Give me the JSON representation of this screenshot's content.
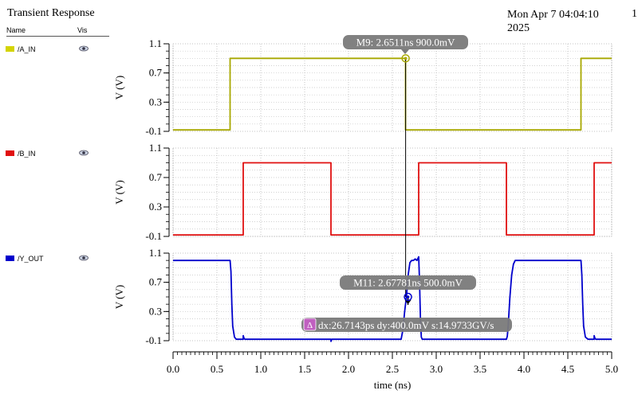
{
  "header": {
    "title": "Transient Response",
    "date_line1": "Mon Apr 7 04:04:10",
    "date_line2": "2025",
    "page_number": "1"
  },
  "legend": {
    "col_name": "Name",
    "col_vis": "Vis"
  },
  "signals": [
    {
      "name": "/A_IN",
      "color": "#a8a800",
      "swatch": "#d4d400"
    },
    {
      "name": "/B_IN",
      "color": "#e01010",
      "swatch": "#e01010"
    },
    {
      "name": "/Y_OUT",
      "color": "#0000cc",
      "swatch": "#0000cc"
    }
  ],
  "chart_data": {
    "type": "line",
    "xlabel": "time (ns)",
    "xlim": [
      0,
      5.0
    ],
    "x_ticks": [
      "0.0",
      "0.5",
      "1.0",
      "1.5",
      "2.0",
      "2.5",
      "3.0",
      "3.5",
      "4.0",
      "4.5",
      "5.0"
    ],
    "x_tick_values": [
      0,
      0.5,
      1,
      1.5,
      2,
      2.5,
      3,
      3.5,
      4,
      4.5,
      5
    ],
    "panels": [
      {
        "ylabel": "V (V)",
        "ylim": [
          -0.1,
          1.1
        ],
        "y_ticks": [
          "-0.1",
          "0.3",
          "0.7",
          "1.1"
        ],
        "y_tick_values": [
          -0.1,
          0.3,
          0.7,
          1.1
        ],
        "series": {
          "name": "/A_IN",
          "x": [
            0,
            0.65,
            0.65,
            2.65,
            2.65,
            4.65,
            4.65,
            5.0
          ],
          "y": [
            -0.08,
            -0.08,
            0.9,
            0.9,
            -0.08,
            -0.08,
            0.9,
            0.9
          ]
        }
      },
      {
        "ylabel": "V (V)",
        "ylim": [
          -0.1,
          1.1
        ],
        "y_ticks": [
          "-0.1",
          "0.3",
          "0.7",
          "1.1"
        ],
        "y_tick_values": [
          -0.1,
          0.3,
          0.7,
          1.1
        ],
        "series": {
          "name": "/B_IN",
          "x": [
            0,
            0.8,
            0.8,
            1.8,
            1.8,
            2.8,
            2.8,
            3.8,
            3.8,
            4.8,
            4.8,
            5.0
          ],
          "y": [
            -0.08,
            -0.08,
            0.9,
            0.9,
            -0.08,
            -0.08,
            0.9,
            0.9,
            -0.08,
            -0.08,
            0.9,
            0.9
          ]
        }
      },
      {
        "ylabel": "V (V)",
        "ylim": [
          -0.1,
          1.1
        ],
        "y_ticks": [
          "-0.1",
          "0.3",
          "0.7",
          "1.1"
        ],
        "y_tick_values": [
          -0.1,
          0.3,
          0.7,
          1.1
        ],
        "series": {
          "name": "/Y_OUT",
          "x": [
            0,
            0.65,
            0.66,
            0.67,
            0.68,
            0.7,
            0.72,
            0.75,
            0.8,
            0.8,
            0.81,
            0.82,
            1.8,
            1.8,
            1.81,
            1.82,
            2.6,
            2.62,
            2.64,
            2.66,
            2.68,
            2.7,
            2.72,
            2.74,
            2.76,
            2.78,
            2.8,
            2.81,
            2.82,
            2.83,
            2.84,
            2.85,
            3.8,
            3.81,
            3.82,
            3.84,
            3.86,
            3.88,
            3.9,
            3.95,
            4.0,
            4.65,
            4.66,
            4.67,
            4.68,
            4.7,
            4.73,
            4.78,
            4.8,
            4.8,
            4.81,
            4.82,
            5.0
          ],
          "y": [
            1.0,
            1.0,
            0.85,
            0.4,
            0.1,
            -0.05,
            -0.08,
            -0.08,
            -0.08,
            -0.03,
            -0.07,
            -0.08,
            -0.08,
            -0.11,
            -0.08,
            -0.08,
            -0.08,
            0.05,
            0.3,
            0.5,
            0.8,
            0.97,
            1.0,
            1.0,
            1.02,
            1.0,
            1.05,
            0.7,
            0.2,
            -0.05,
            -0.08,
            -0.08,
            -0.08,
            -0.04,
            0.1,
            0.5,
            0.8,
            0.95,
            1.0,
            1.0,
            1.0,
            1.0,
            0.8,
            0.4,
            0.1,
            -0.05,
            -0.08,
            -0.08,
            -0.08,
            -0.03,
            -0.07,
            -0.08,
            -0.08
          ]
        }
      }
    ],
    "markers": [
      {
        "label": "M9: 2.6511ns 900.0mV",
        "x": 2.6511,
        "y": 0.9,
        "panel": 0
      },
      {
        "label": "M11: 2.67781ns 500.0mV",
        "x": 2.67781,
        "y": 0.5,
        "panel": 2
      }
    ],
    "delta": {
      "label": "dx:26.7143ps dy:400.0mV s:14.9733GV/s",
      "icon": "Δ",
      "panel": 2,
      "y": 0.2
    },
    "grid": true
  }
}
